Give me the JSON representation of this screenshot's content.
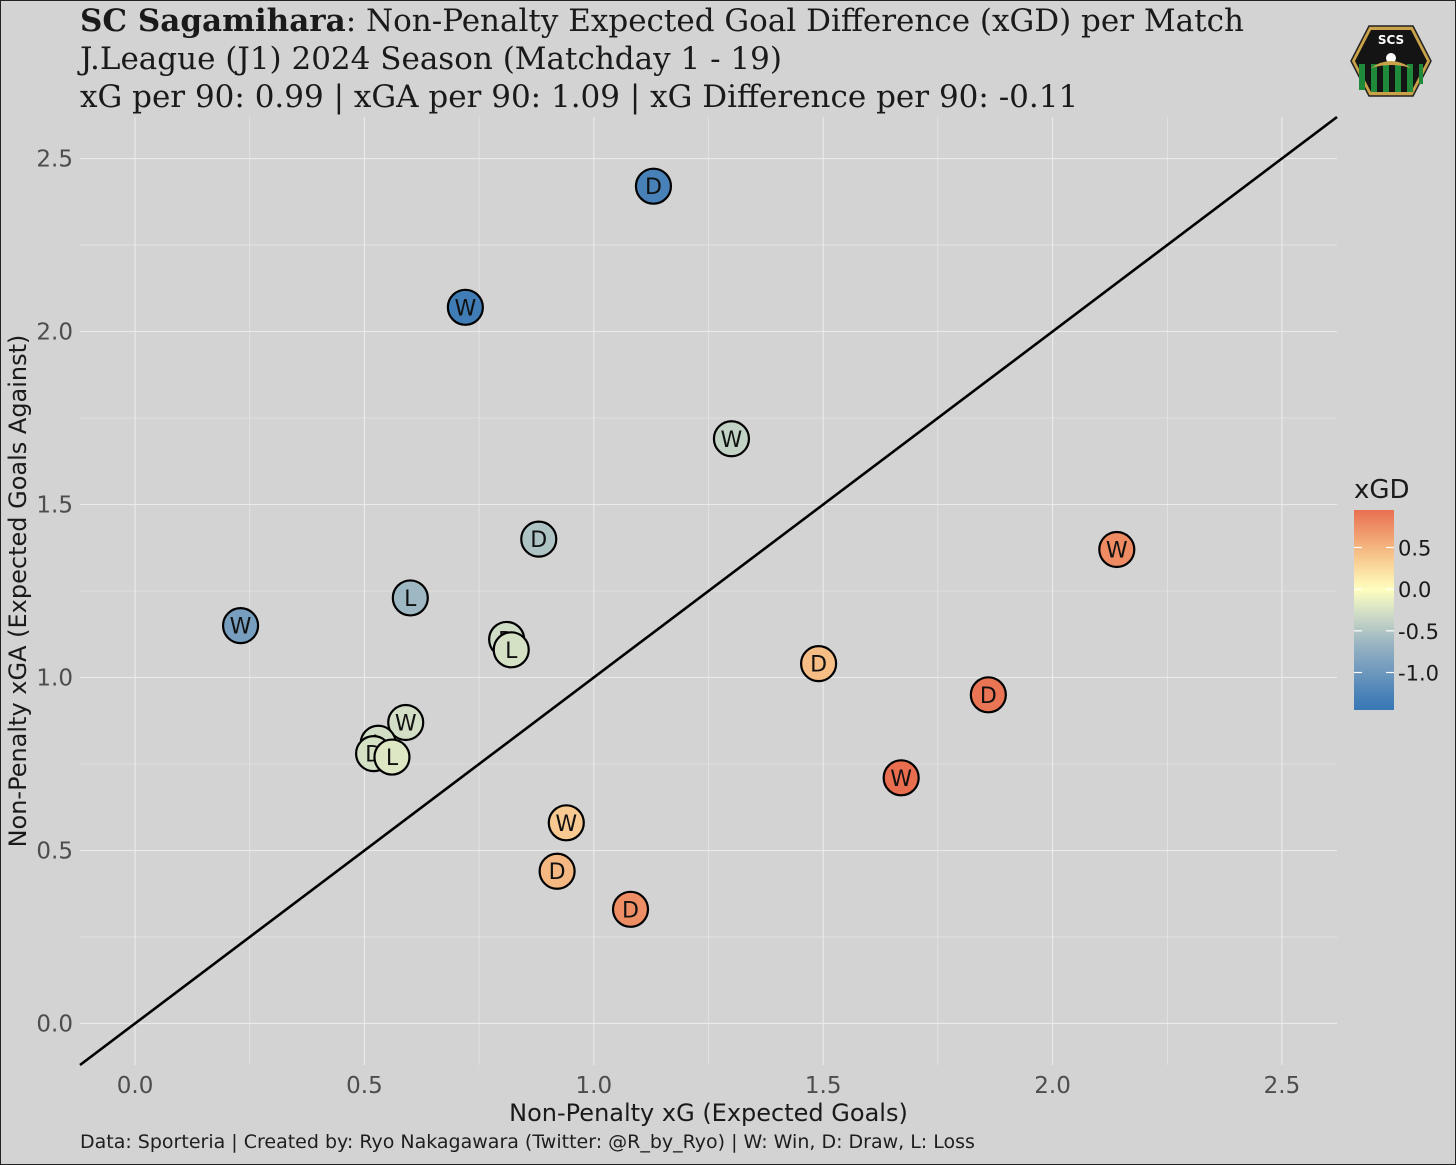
{
  "header": {
    "title_team": "SC Sagamihara",
    "title_rest": ": Non-Penalty Expected Goal Difference (xGD) per Match",
    "subtitle": "J.League (J1) 2024 Season (Matchday 1 - 19)",
    "stats_line": "xG per 90: 0.99 | xGA per 90: 1.09 | xG Difference per 90: -0.11"
  },
  "badge": {
    "text": "SCS"
  },
  "caption": "Data: Sporteria | Created by: Ryo Nakagawara (Twitter: @R_by_Ryo) | W: Win, D: Draw, L: Loss",
  "chart_data": {
    "type": "scatter",
    "xlabel": "Non-Penalty xG (Expected Goals)",
    "ylabel": "Non-Penalty xGA (Expected Goals Against)",
    "xlim": [
      -0.12,
      2.62
    ],
    "ylim": [
      -0.12,
      2.62
    ],
    "x_ticks": [
      "0.0",
      "0.5",
      "1.0",
      "1.5",
      "2.0",
      "2.5"
    ],
    "y_ticks": [
      "0.0",
      "0.5",
      "1.0",
      "1.5",
      "2.0",
      "2.5"
    ],
    "grid": true,
    "reference_line": "y = x",
    "color_legend": {
      "title": "xGD",
      "labels": [
        "0.5",
        "0.0",
        "-0.5",
        "-1.0"
      ],
      "colors": {
        "high": "#e8674b",
        "mid": "#ffffbf",
        "low": "#3a78b5"
      }
    },
    "points": [
      {
        "x": 1.13,
        "y": 2.42,
        "result": "D",
        "xgd": -1.29
      },
      {
        "x": 0.72,
        "y": 2.07,
        "result": "W",
        "xgd": -1.35
      },
      {
        "x": 1.3,
        "y": 1.69,
        "result": "W",
        "xgd": -0.39
      },
      {
        "x": 0.88,
        "y": 1.4,
        "result": "D",
        "xgd": -0.52
      },
      {
        "x": 0.6,
        "y": 1.23,
        "result": "L",
        "xgd": -0.63
      },
      {
        "x": 0.23,
        "y": 1.15,
        "result": "W",
        "xgd": -0.92
      },
      {
        "x": 0.81,
        "y": 1.11,
        "result": "D",
        "xgd": -0.3
      },
      {
        "x": 0.82,
        "y": 1.08,
        "result": "L",
        "xgd": -0.26
      },
      {
        "x": 0.59,
        "y": 0.87,
        "result": "W",
        "xgd": -0.28
      },
      {
        "x": 0.53,
        "y": 0.81,
        "result": "L",
        "xgd": -0.28
      },
      {
        "x": 0.52,
        "y": 0.78,
        "result": "D",
        "xgd": -0.26
      },
      {
        "x": 0.56,
        "y": 0.77,
        "result": "L",
        "xgd": -0.21
      },
      {
        "x": 0.94,
        "y": 0.58,
        "result": "W",
        "xgd": 0.36
      },
      {
        "x": 0.92,
        "y": 0.44,
        "result": "D",
        "xgd": 0.48
      },
      {
        "x": 1.08,
        "y": 0.33,
        "result": "D",
        "xgd": 0.75
      },
      {
        "x": 1.49,
        "y": 1.04,
        "result": "D",
        "xgd": 0.45
      },
      {
        "x": 1.67,
        "y": 0.71,
        "result": "W",
        "xgd": 0.96
      },
      {
        "x": 1.86,
        "y": 0.95,
        "result": "D",
        "xgd": 0.91
      },
      {
        "x": 2.14,
        "y": 1.37,
        "result": "W",
        "xgd": 0.77
      }
    ]
  }
}
